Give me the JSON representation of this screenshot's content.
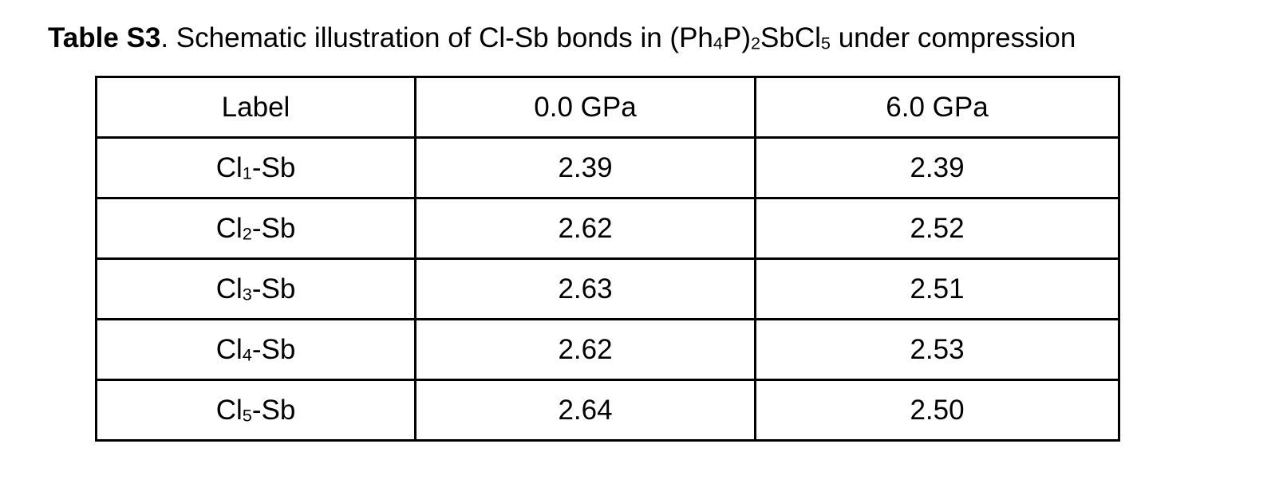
{
  "caption": {
    "label": "Table S3",
    "text_parts": [
      ". Schematic illustration of Cl-Sb bonds in (Ph",
      "4",
      "P)",
      "2",
      "SbCl",
      "5",
      " under compression"
    ]
  },
  "table": {
    "headers": [
      "Label",
      "0.0 GPa",
      "6.0 GPa"
    ],
    "rows": [
      {
        "label_main": "Cl",
        "label_sub": "1",
        "label_tail": "-Sb",
        "p0": "2.39",
        "p6": "2.39"
      },
      {
        "label_main": "Cl",
        "label_sub": "2",
        "label_tail": "-Sb",
        "p0": "2.62",
        "p6": "2.52"
      },
      {
        "label_main": "Cl",
        "label_sub": "3",
        "label_tail": "-Sb",
        "p0": "2.63",
        "p6": "2.51"
      },
      {
        "label_main": "Cl",
        "label_sub": "4",
        "label_tail": "-Sb",
        "p0": "2.62",
        "p6": "2.53"
      },
      {
        "label_main": "Cl",
        "label_sub": "5",
        "label_tail": "-Sb",
        "p0": "2.64",
        "p6": "2.50"
      }
    ]
  }
}
